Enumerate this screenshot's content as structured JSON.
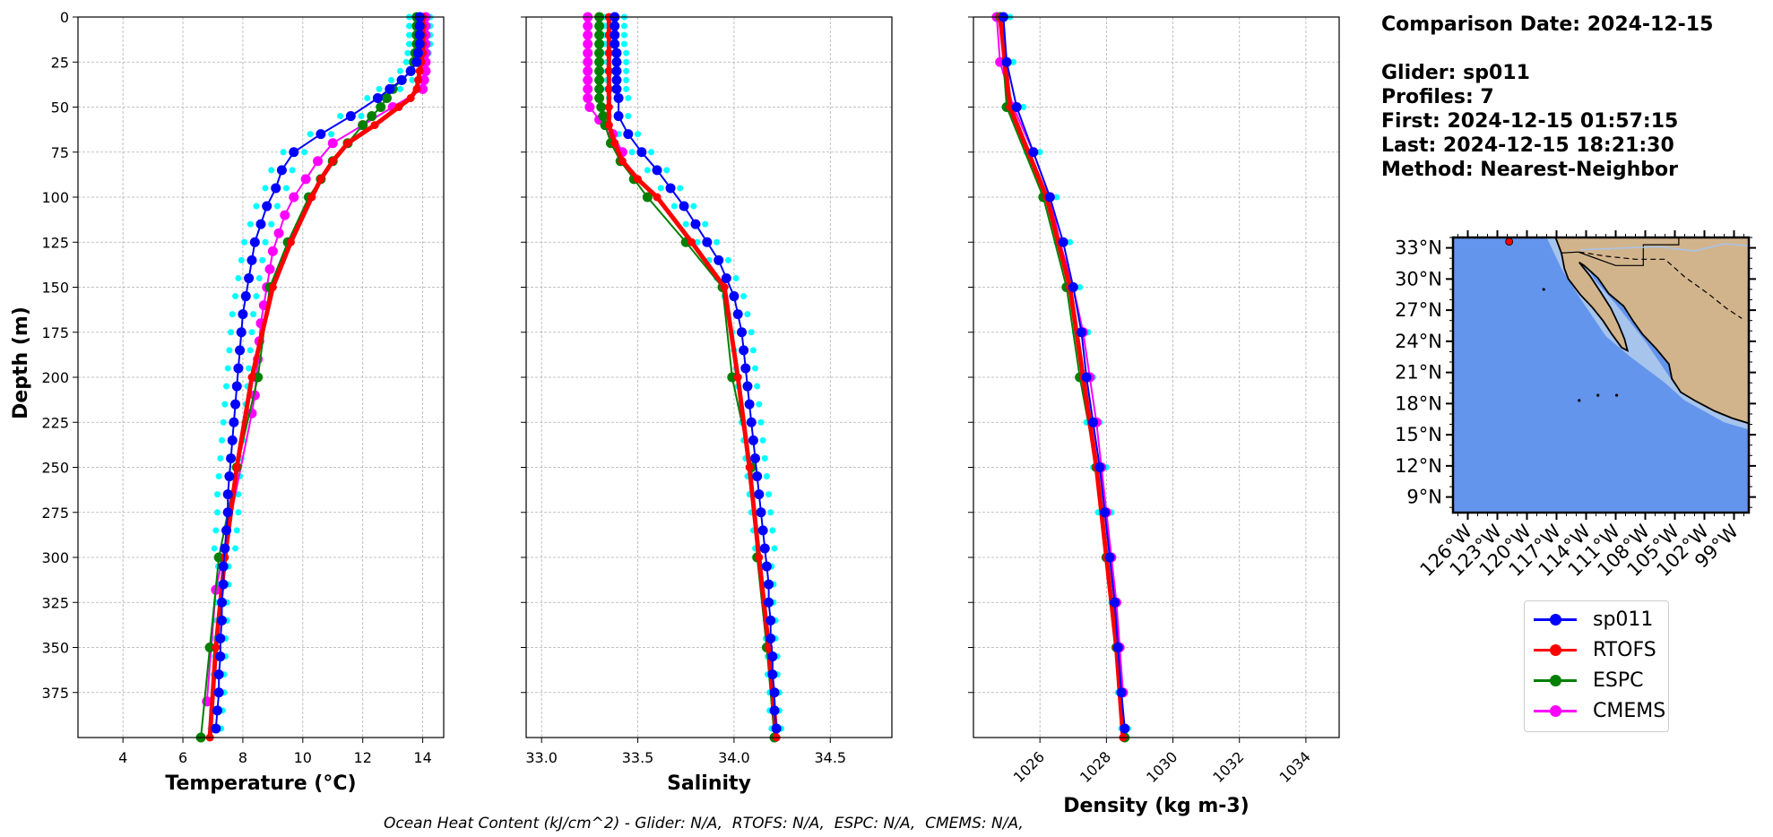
{
  "info": {
    "comparison_date": "Comparison Date: 2024-12-15",
    "glider": "Glider: sp011",
    "profiles": "Profiles: 7",
    "first": "First: 2024-12-15 01:57:15",
    "last": "Last: 2024-12-15 18:21:30",
    "method": "Method: Nearest-Neighbor"
  },
  "footer": "Ocean Heat Content (kJ/cm^2) - Glider: N/A,  RTOFS: N/A,  ESPC: N/A,  CMEMS: N/A,",
  "colors": {
    "sp011": "#0000ff",
    "RTOFS": "#ff0000",
    "ESPC": "#008000",
    "CMEMS": "#ff00ff",
    "glider_raw": "#00ffff",
    "ocean": "#6495ed",
    "land": "#d2b48c",
    "shelf": "#a6c4ec"
  },
  "legend": [
    {
      "label": "sp011",
      "color": "#0000ff"
    },
    {
      "label": "RTOFS",
      "color": "#ff0000"
    },
    {
      "label": "ESPC",
      "color": "#008000"
    },
    {
      "label": "CMEMS",
      "color": "#ff00ff"
    }
  ],
  "map": {
    "lat_labels": [
      "33°N",
      "30°N",
      "27°N",
      "24°N",
      "21°N",
      "18°N",
      "15°N",
      "12°N",
      "9°N"
    ],
    "lon_labels": [
      "126°W",
      "123°W",
      "120°W",
      "117°W",
      "114°W",
      "111°W",
      "108°W",
      "105°W",
      "102°W",
      "99°W"
    ],
    "glider_marker_color": "#ff0000"
  },
  "chart_data": [
    {
      "type": "line",
      "xlabel": "Temperature (°C)",
      "ylabel": "Depth (m)",
      "xlim": [
        2.5,
        14.7
      ],
      "ylim": [
        400,
        0
      ],
      "xticks": [
        "4",
        "6",
        "8",
        "10",
        "12",
        "14"
      ],
      "yticks": [
        "0",
        "25",
        "50",
        "75",
        "100",
        "125",
        "150",
        "175",
        "200",
        "225",
        "250",
        "275",
        "300",
        "325",
        "350",
        "375"
      ],
      "grid": true,
      "series": [
        {
          "name": "sp011",
          "depth": [
            0,
            5,
            10,
            15,
            20,
            25,
            30,
            35,
            40,
            45,
            55,
            65,
            75,
            85,
            95,
            105,
            115,
            125,
            135,
            145,
            155,
            165,
            175,
            185,
            195,
            205,
            215,
            225,
            235,
            245,
            255,
            265,
            275,
            285,
            295,
            305,
            315,
            325,
            335,
            345,
            355,
            365,
            375,
            385,
            395
          ],
          "values": [
            13.9,
            13.9,
            13.9,
            13.9,
            13.85,
            13.8,
            13.6,
            13.3,
            12.9,
            12.5,
            11.6,
            10.6,
            9.7,
            9.3,
            9.1,
            8.8,
            8.6,
            8.4,
            8.3,
            8.2,
            8.1,
            8.0,
            7.95,
            7.9,
            7.85,
            7.8,
            7.75,
            7.7,
            7.65,
            7.6,
            7.55,
            7.5,
            7.5,
            7.45,
            7.4,
            7.35,
            7.35,
            7.3,
            7.3,
            7.25,
            7.25,
            7.2,
            7.2,
            7.15,
            7.1
          ]
        },
        {
          "name": "RTOFS",
          "depth": [
            0,
            5,
            10,
            15,
            20,
            25,
            30,
            35,
            40,
            45,
            50,
            60,
            70,
            80,
            90,
            100,
            125,
            150,
            200,
            250,
            300,
            350,
            400
          ],
          "values": [
            14.0,
            14.0,
            14.0,
            14.0,
            14.0,
            13.95,
            13.9,
            13.85,
            13.8,
            13.6,
            13.2,
            12.4,
            11.5,
            11.0,
            10.6,
            10.3,
            9.6,
            9.0,
            8.3,
            7.8,
            7.4,
            7.1,
            6.9
          ]
        },
        {
          "name": "ESPC",
          "depth": [
            0,
            5,
            10,
            15,
            20,
            25,
            30,
            35,
            40,
            45,
            50,
            55,
            60,
            70,
            80,
            90,
            100,
            125,
            150,
            200,
            250,
            300,
            350,
            400
          ],
          "values": [
            13.8,
            13.8,
            13.8,
            13.8,
            13.75,
            13.7,
            13.6,
            13.3,
            13.0,
            12.8,
            12.6,
            12.3,
            12.0,
            11.5,
            11.0,
            10.6,
            10.2,
            9.5,
            8.9,
            8.5,
            7.8,
            7.2,
            6.9,
            6.6
          ]
        },
        {
          "name": "CMEMS",
          "depth": [
            0,
            5,
            10,
            15,
            20,
            25,
            30,
            35,
            40,
            50,
            60,
            70,
            80,
            90,
            100,
            110,
            120,
            130,
            140,
            150,
            160,
            170,
            180,
            190,
            200,
            210,
            220,
            318,
            380
          ],
          "values": [
            14.1,
            14.1,
            14.1,
            14.1,
            14.1,
            14.1,
            14.1,
            14.05,
            14.0,
            13.0,
            12.0,
            11.0,
            10.5,
            10.1,
            9.7,
            9.4,
            9.2,
            9.0,
            8.9,
            8.8,
            8.7,
            8.6,
            8.55,
            8.5,
            8.45,
            8.4,
            8.3,
            7.1,
            6.8
          ]
        }
      ]
    },
    {
      "type": "line",
      "xlabel": "Salinity",
      "ylabel": "",
      "xlim": [
        32.92,
        34.82
      ],
      "ylim": [
        400,
        0
      ],
      "xticks": [
        "33.0",
        "33.5",
        "34.0",
        "34.5"
      ],
      "grid": true,
      "series": [
        {
          "name": "sp011",
          "depth": [
            0,
            5,
            10,
            15,
            20,
            25,
            30,
            35,
            40,
            45,
            55,
            65,
            75,
            85,
            95,
            105,
            115,
            125,
            135,
            145,
            155,
            165,
            175,
            185,
            195,
            205,
            215,
            225,
            235,
            245,
            255,
            265,
            275,
            285,
            295,
            305,
            315,
            325,
            335,
            345,
            355,
            365,
            375,
            385,
            395
          ],
          "values": [
            33.38,
            33.38,
            33.38,
            33.38,
            33.39,
            33.39,
            33.39,
            33.39,
            33.39,
            33.4,
            33.4,
            33.45,
            33.52,
            33.6,
            33.67,
            33.74,
            33.8,
            33.86,
            33.92,
            33.96,
            34.0,
            34.02,
            34.04,
            34.05,
            34.06,
            34.07,
            34.08,
            34.09,
            34.1,
            34.11,
            34.12,
            34.13,
            34.14,
            34.15,
            34.16,
            34.17,
            34.18,
            34.18,
            34.19,
            34.19,
            34.2,
            34.2,
            34.21,
            34.21,
            34.22
          ]
        },
        {
          "name": "RTOFS",
          "depth": [
            0,
            10,
            20,
            30,
            40,
            50,
            60,
            70,
            80,
            90,
            100,
            125,
            150,
            200,
            250,
            300,
            350,
            400
          ],
          "values": [
            33.35,
            33.35,
            33.35,
            33.35,
            33.35,
            33.35,
            33.35,
            33.38,
            33.42,
            33.5,
            33.6,
            33.78,
            33.95,
            34.02,
            34.08,
            34.13,
            34.18,
            34.22
          ]
        },
        {
          "name": "ESPC",
          "depth": [
            0,
            5,
            10,
            15,
            20,
            25,
            30,
            35,
            40,
            45,
            50,
            55,
            60,
            70,
            80,
            90,
            100,
            125,
            150,
            200,
            250,
            300,
            350,
            400
          ],
          "values": [
            33.3,
            33.3,
            33.3,
            33.3,
            33.3,
            33.3,
            33.3,
            33.3,
            33.3,
            33.3,
            33.31,
            33.32,
            33.33,
            33.36,
            33.41,
            33.48,
            33.55,
            33.75,
            33.94,
            33.99,
            34.09,
            34.12,
            34.17,
            34.21
          ]
        },
        {
          "name": "CMEMS",
          "depth": [
            0,
            5,
            10,
            15,
            20,
            25,
            30,
            35,
            40,
            45,
            50,
            57,
            65,
            75
          ],
          "values": [
            33.24,
            33.24,
            33.24,
            33.24,
            33.24,
            33.24,
            33.24,
            33.24,
            33.24,
            33.24,
            33.25,
            33.3,
            33.37,
            33.42
          ]
        }
      ]
    },
    {
      "type": "line",
      "xlabel": "Density (kg m-3)",
      "ylabel": "",
      "xlim": [
        1024.0,
        1035.0
      ],
      "ylim": [
        400,
        0
      ],
      "xticks": [
        "1026",
        "1028",
        "1030",
        "1032",
        "1034"
      ],
      "grid": true,
      "series": [
        {
          "name": "sp011",
          "depth": [
            0,
            25,
            50,
            75,
            100,
            125,
            150,
            175,
            200,
            225,
            250,
            275,
            300,
            325,
            350,
            375,
            395
          ],
          "values": [
            1024.9,
            1025.0,
            1025.3,
            1025.8,
            1026.3,
            1026.7,
            1027.0,
            1027.25,
            1027.4,
            1027.6,
            1027.8,
            1027.95,
            1028.1,
            1028.25,
            1028.35,
            1028.45,
            1028.55
          ]
        },
        {
          "name": "RTOFS",
          "depth": [
            0,
            50,
            100,
            150,
            200,
            250,
            300,
            350,
            400
          ],
          "values": [
            1024.8,
            1025.1,
            1026.2,
            1026.9,
            1027.3,
            1027.7,
            1028.0,
            1028.3,
            1028.5
          ]
        },
        {
          "name": "ESPC",
          "depth": [
            0,
            50,
            100,
            150,
            200,
            250,
            300,
            350,
            400
          ],
          "values": [
            1024.8,
            1025.0,
            1026.1,
            1026.8,
            1027.2,
            1027.7,
            1028.0,
            1028.3,
            1028.55
          ]
        },
        {
          "name": "CMEMS",
          "depth": [
            0,
            25,
            50,
            75,
            100,
            125,
            150,
            175,
            200,
            225,
            250,
            275,
            300,
            325,
            350,
            375
          ],
          "values": [
            1024.7,
            1024.8,
            1025.2,
            1025.8,
            1026.3,
            1026.6,
            1027.0,
            1027.3,
            1027.5,
            1027.7,
            1027.85,
            1028.0,
            1028.15,
            1028.3,
            1028.4,
            1028.5
          ]
        }
      ]
    }
  ]
}
